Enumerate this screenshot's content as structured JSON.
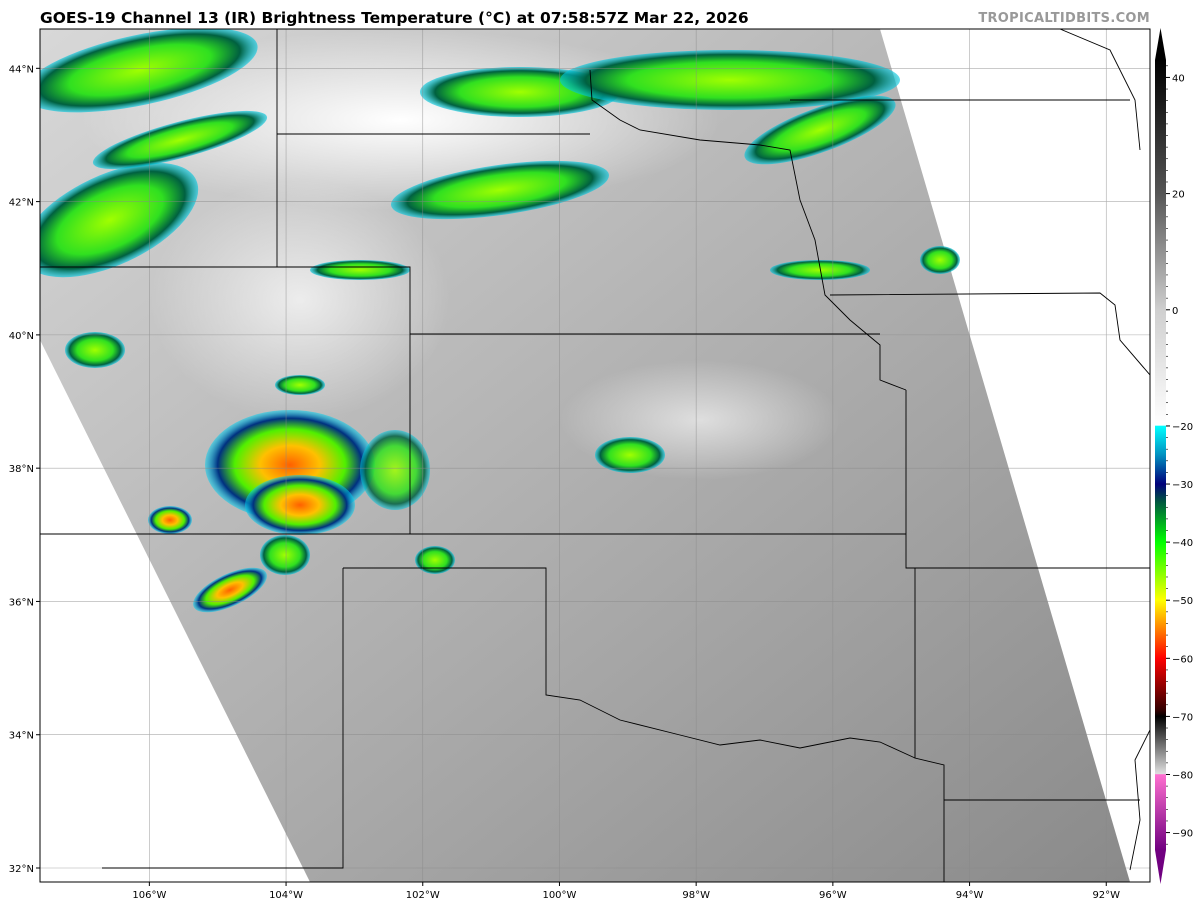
{
  "title": "GOES-19 Channel 13 (IR) Brightness Temperature (°C) at 07:58:57Z Mar 22, 2026",
  "watermark": "TROPICALTIDBITS.COM",
  "map": {
    "lon_range": [
      -107.6,
      -91.36
    ],
    "lat_range": [
      31.79,
      44.59
    ],
    "lon_ticks": [
      {
        "value": -106,
        "label": "106°W"
      },
      {
        "value": -104,
        "label": "104°W"
      },
      {
        "value": -102,
        "label": "102°W"
      },
      {
        "value": -100,
        "label": "100°W"
      },
      {
        "value": -98,
        "label": "98°W"
      },
      {
        "value": -96,
        "label": "96°W"
      },
      {
        "value": -94,
        "label": "94°W"
      },
      {
        "value": -92,
        "label": "92°W"
      }
    ],
    "lat_ticks": [
      {
        "value": 44,
        "label": "44°N"
      },
      {
        "value": 42,
        "label": "42°N"
      },
      {
        "value": 40,
        "label": "40°N"
      },
      {
        "value": 38,
        "label": "38°N"
      },
      {
        "value": 36,
        "label": "36°N"
      },
      {
        "value": 34,
        "label": "34°N"
      },
      {
        "value": 32,
        "label": "32°N"
      }
    ],
    "gridlines": true
  },
  "colorbar": {
    "range": [
      -93,
      43
    ],
    "ticks": [
      40,
      20,
      0,
      -20,
      -30,
      -40,
      -50,
      -60,
      -70,
      -80,
      -90
    ],
    "stops": [
      {
        "value": 43,
        "color": "#000000"
      },
      {
        "value": 20,
        "color": "#555555"
      },
      {
        "value": 0,
        "color": "#cfcfcf"
      },
      {
        "value": -19.9,
        "color": "#ffffff"
      },
      {
        "value": -20,
        "color": "#00ffff"
      },
      {
        "value": -25,
        "color": "#0090c0"
      },
      {
        "value": -30,
        "color": "#00007a"
      },
      {
        "value": -33,
        "color": "#005540"
      },
      {
        "value": -40,
        "color": "#00ff00"
      },
      {
        "value": -50,
        "color": "#ffff00"
      },
      {
        "value": -55,
        "color": "#ff8000"
      },
      {
        "value": -60,
        "color": "#ff0000"
      },
      {
        "value": -69,
        "color": "#300000"
      },
      {
        "value": -70,
        "color": "#000000"
      },
      {
        "value": -79.9,
        "color": "#e0e0e0"
      },
      {
        "value": -80,
        "color": "#ff70d0"
      },
      {
        "value": -93,
        "color": "#700080"
      }
    ]
  }
}
